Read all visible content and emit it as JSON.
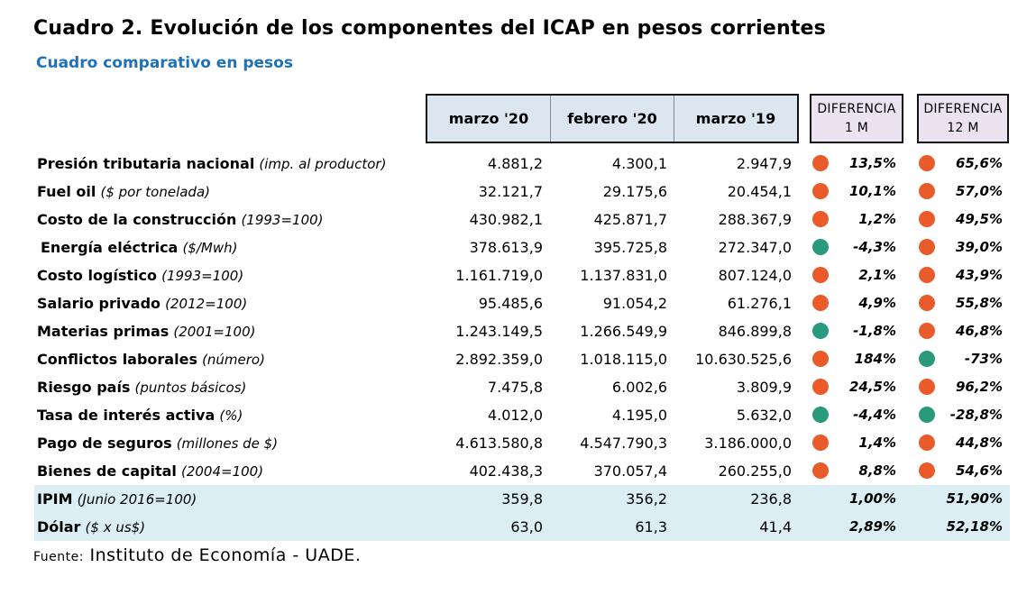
{
  "title": "Cuadro 2. Evolución de los componentes del ICAP en pesos corrientes",
  "subtitle": "Cuadro comparativo en pesos",
  "colors": {
    "up": "#ea5b2c",
    "down": "#2a9a7c",
    "highlight_row": "#daeef3",
    "header_fill": "#dce6f1",
    "diff_header_fill": "#ece3f0",
    "subtitle": "#1f72b8"
  },
  "headers": {
    "col1": "marzo '20",
    "col2": "febrero '20",
    "col3": "marzo '19",
    "diff1_line1": "DIFERENCIA",
    "diff1_line2": "1 M",
    "diff12_line1": "DIFERENCIA",
    "diff12_line2": "12 M"
  },
  "rows": [
    {
      "name": "Presión tributaria nacional",
      "unit": "(imp. al productor)",
      "v1": "4.881,2",
      "v2": "4.300,1",
      "v3": "2.947,9",
      "d1": "13,5%",
      "d1_dir": "up",
      "d12": "65,6%",
      "d12_dir": "up"
    },
    {
      "name": "Fuel oil",
      "unit": "($ por tonelada)",
      "v1": "32.121,7",
      "v2": "29.175,6",
      "v3": "20.454,1",
      "d1": "10,1%",
      "d1_dir": "up",
      "d12": "57,0%",
      "d12_dir": "up"
    },
    {
      "name": "Costo de la construcción",
      "unit": "(1993=100)",
      "v1": "430.982,1",
      "v2": "425.871,7",
      "v3": "288.367,9",
      "d1": "1,2%",
      "d1_dir": "up",
      "d12": "49,5%",
      "d12_dir": "up"
    },
    {
      "name": "Energía eléctrica",
      "unit": "($/Mwh)",
      "v1": "378.613,9",
      "v2": "395.725,8",
      "v3": "272.347,0",
      "d1": "-4,3%",
      "d1_dir": "down",
      "d12": "39,0%",
      "d12_dir": "up"
    },
    {
      "name": "Costo logístico",
      "unit": "(1993=100)",
      "v1": "1.161.719,0",
      "v2": "1.137.831,0",
      "v3": "807.124,0",
      "d1": "2,1%",
      "d1_dir": "up",
      "d12": "43,9%",
      "d12_dir": "up"
    },
    {
      "name": "Salario privado",
      "unit": "(2012=100)",
      "v1": "95.485,6",
      "v2": "91.054,2",
      "v3": "61.276,1",
      "d1": "4,9%",
      "d1_dir": "up",
      "d12": "55,8%",
      "d12_dir": "up"
    },
    {
      "name": "Materias primas",
      "unit": "(2001=100)",
      "v1": "1.243.149,5",
      "v2": "1.266.549,9",
      "v3": "846.899,8",
      "d1": "-1,8%",
      "d1_dir": "down",
      "d12": "46,8%",
      "d12_dir": "up"
    },
    {
      "name": "Conflictos laborales",
      "unit": "(número)",
      "v1": "2.892.359,0",
      "v2": "1.018.115,0",
      "v3": "10.630.525,6",
      "d1": "184%",
      "d1_dir": "up",
      "d12": "-73%",
      "d12_dir": "down"
    },
    {
      "name": "Riesgo país",
      "unit": "(puntos básicos)",
      "v1": "7.475,8",
      "v2": "6.002,6",
      "v3": "3.809,9",
      "d1": "24,5%",
      "d1_dir": "up",
      "d12": "96,2%",
      "d12_dir": "up"
    },
    {
      "name": "Tasa de interés activa",
      "unit": "(%)",
      "v1": "4.012,0",
      "v2": "4.195,0",
      "v3": "5.632,0",
      "d1": "-4,4%",
      "d1_dir": "down",
      "d12": "-28,8%",
      "d12_dir": "down"
    },
    {
      "name": "Pago de seguros",
      "unit": "(millones de $)",
      "v1": "4.613.580,8",
      "v2": "4.547.790,3",
      "v3": "3.186.000,0",
      "d1": "1,4%",
      "d1_dir": "up",
      "d12": "44,8%",
      "d12_dir": "up"
    },
    {
      "name": "Bienes de capital",
      "unit": "(2004=100)",
      "v1": "402.438,3",
      "v2": "370.057,4",
      "v3": "260.255,0",
      "d1": "8,8%",
      "d1_dir": "up",
      "d12": "54,6%",
      "d12_dir": "up"
    },
    {
      "name": "IPIM",
      "unit": "(Junio 2016=100)",
      "v1": "359,8",
      "v2": "356,2",
      "v3": "236,8",
      "d1": "1,00%",
      "d1_dir": "none",
      "d12": "51,90%",
      "d12_dir": "none",
      "highlight": true
    },
    {
      "name": "Dólar",
      "unit": "($ x us$)",
      "v1": "63,0",
      "v2": "61,3",
      "v3": "41,4",
      "d1": "2,89%",
      "d1_dir": "none",
      "d12": "52,18%",
      "d12_dir": "none",
      "highlight": true
    }
  ],
  "source": {
    "prefix": "Fuente:",
    "text": "Instituto de Economía - UADE."
  }
}
